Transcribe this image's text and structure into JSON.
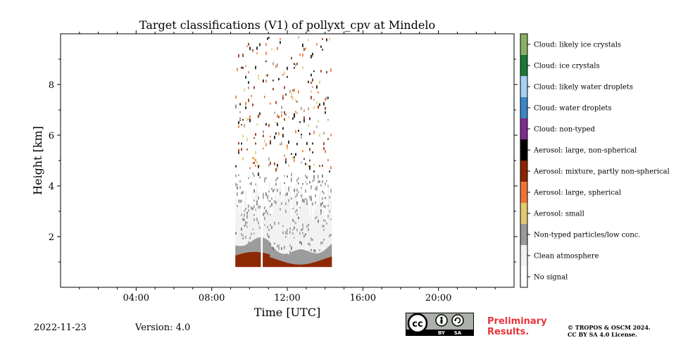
{
  "chart_data": {
    "type": "heatmap",
    "title": "Target classifications (V1) of pollyxt_cpv at Mindelo",
    "xlabel": "Time [UTC]",
    "ylabel": "Height [km]",
    "xlim": [
      0,
      24
    ],
    "ylim": [
      0,
      10
    ],
    "x_ticks": [
      {
        "value": 4,
        "label": "04:00"
      },
      {
        "value": 8,
        "label": "08:00"
      },
      {
        "value": 12,
        "label": "12:00"
      },
      {
        "value": 16,
        "label": "16:00"
      },
      {
        "value": 20,
        "label": "20:00"
      }
    ],
    "y_ticks": [
      {
        "value": 2,
        "label": "2"
      },
      {
        "value": 4,
        "label": "4"
      },
      {
        "value": 6,
        "label": "6"
      },
      {
        "value": 8,
        "label": "8"
      }
    ],
    "grid": false,
    "data_segments": [
      {
        "start": 9.25,
        "end": 10.55
      },
      {
        "start": 10.7,
        "end": 14.3
      }
    ],
    "layers": [
      {
        "class": "Aerosol: mixture, partly non-spherical",
        "from_km": 0.8,
        "to_km": 1.4
      },
      {
        "class": "Non-typed particles/low conc.",
        "from_km": 1.2,
        "to_km": 1.8
      },
      {
        "class": "Clean atmosphere",
        "from_km": 1.8,
        "to_km": 4.5
      }
    ],
    "colorbar": [
      {
        "label": "Cloud: likely ice crystals",
        "color": "#8ab163"
      },
      {
        "label": "Cloud: ice crystals",
        "color": "#1b7837"
      },
      {
        "label": "Cloud: likely water droplets",
        "color": "#a6d1f3"
      },
      {
        "label": "Cloud: water droplets",
        "color": "#3b87c9"
      },
      {
        "label": "Cloud: non-typed",
        "color": "#7f2b8f"
      },
      {
        "label": "Aerosol: large, non-spherical",
        "color": "#000000"
      },
      {
        "label": "Aerosol: mixture, partly non-spherical",
        "color": "#8b2400"
      },
      {
        "label": "Aerosol: large, spherical",
        "color": "#ef7332"
      },
      {
        "label": "Aerosol: small",
        "color": "#e2c86e"
      },
      {
        "label": "Non-typed particles/low conc.",
        "color": "#9a9a9a"
      },
      {
        "label": "Clean atmosphere",
        "color": "#f2f2f2"
      },
      {
        "label": "No signal",
        "color": "#ffffff"
      }
    ]
  },
  "footer": {
    "date": "2022-11-23",
    "version": "Version: 4.0",
    "preliminary_line1": "Preliminary",
    "preliminary_line2": "Results.",
    "copyright_line1": "© TROPOS & OSCM 2024.",
    "copyright_line2": "CC BY SA 4.0 License.",
    "license_badge": {
      "text_cc": "cc",
      "text_by": "BY",
      "text_sa": "SA"
    }
  }
}
